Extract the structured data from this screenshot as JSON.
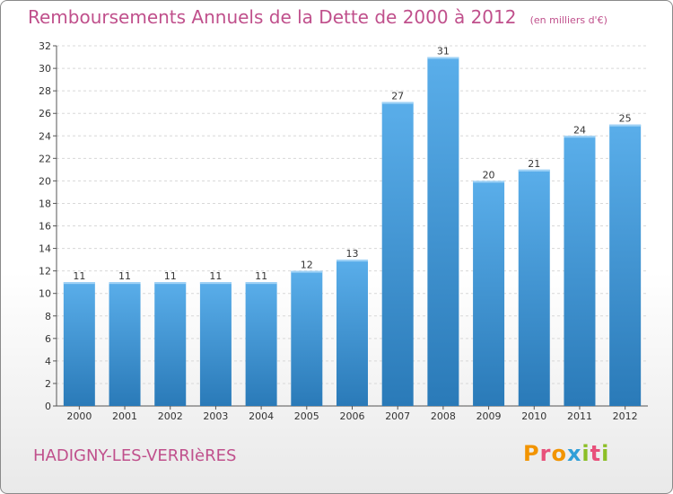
{
  "header": {
    "title": "Remboursements Annuels de la Dette de 2000 à 2012",
    "subtitle": "(en milliers d'€)"
  },
  "footer": {
    "commune": "HADIGNY-LES-VERRIèRES",
    "logo_text": "Proxiti",
    "logo_letters": [
      {
        "char": "P",
        "color": "#f29400"
      },
      {
        "char": "r",
        "color": "#e8507a"
      },
      {
        "char": "o",
        "color": "#f29400"
      },
      {
        "char": "x",
        "color": "#2f9fd8"
      },
      {
        "char": "i",
        "color": "#8cbf26"
      },
      {
        "char": "t",
        "color": "#e8507a"
      },
      {
        "char": "i",
        "color": "#8cbf26"
      }
    ]
  },
  "colors": {
    "bar_top": "#5aaeea",
    "bar_bottom": "#2a7ab8",
    "title": "#c0508c",
    "grid": "#d8d8d8"
  },
  "chart_data": {
    "type": "bar",
    "title": "Remboursements Annuels de la Dette de 2000 à 2012",
    "subtitle": "(en milliers d'€)",
    "xlabel": "",
    "ylabel": "",
    "categories": [
      "2000",
      "2001",
      "2002",
      "2003",
      "2004",
      "2005",
      "2006",
      "2007",
      "2008",
      "2009",
      "2010",
      "2011",
      "2012"
    ],
    "values": [
      11,
      11,
      11,
      11,
      11,
      12,
      13,
      27,
      31,
      20,
      21,
      24,
      25
    ],
    "ylim": [
      0,
      32
    ],
    "yticks": [
      0,
      2,
      4,
      6,
      8,
      10,
      12,
      14,
      16,
      18,
      20,
      22,
      24,
      26,
      28,
      30,
      32
    ],
    "grid": true,
    "legend": "none"
  }
}
